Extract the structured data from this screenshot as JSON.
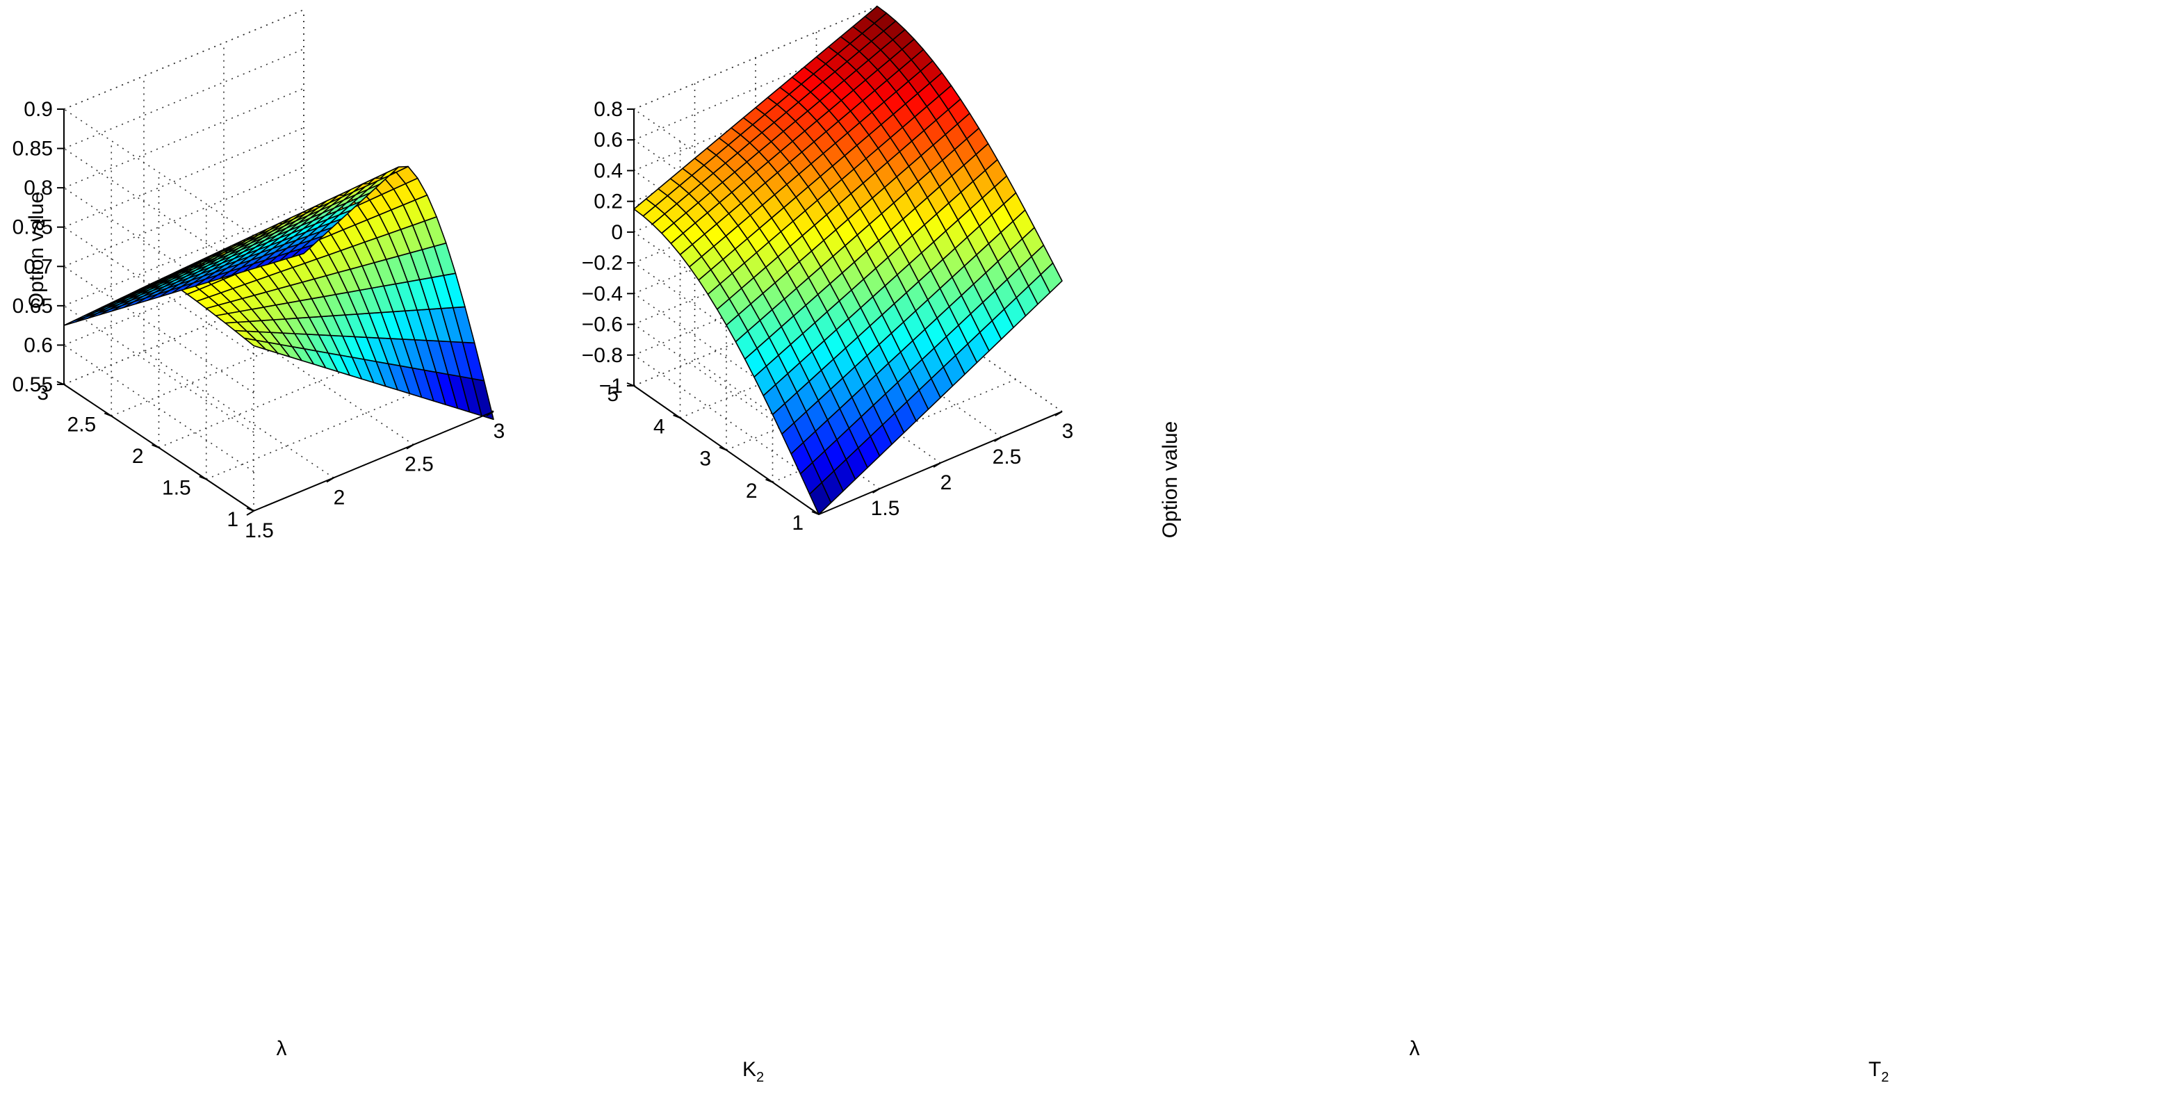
{
  "chart_data": [
    {
      "type": "surface3d",
      "title": "",
      "xlabel": "K",
      "xlabel_sub": "2",
      "ylabel": "λ",
      "zlabel": "Option value",
      "x_ticks": [
        "1.5",
        "2",
        "2.5",
        "3"
      ],
      "y_ticks": [
        "1",
        "1.5",
        "2",
        "2.5",
        "3"
      ],
      "z_ticks": [
        "0.55",
        "0.6",
        "0.65",
        "0.7",
        "0.75",
        "0.8",
        "0.85",
        "0.9"
      ],
      "xlim": [
        1.5,
        3
      ],
      "ylim": [
        1,
        3
      ],
      "zlim": [
        0.55,
        0.9
      ],
      "colormap": "jet",
      "grid": true,
      "surface": {
        "x_range": [
          1.5,
          3
        ],
        "y_range": [
          1,
          3
        ],
        "nx": 21,
        "ny": 21,
        "peak_x": 1.5,
        "peak_y": 1.95,
        "corner_values": {
          "x1.5_y1": 0.76,
          "x1.5_y3": 0.625,
          "x3_y1": 0.54,
          "x3_y3": 0.59,
          "peak_at_x1.5": 0.77,
          "peak_at_x3": 0.79
        }
      }
    },
    {
      "type": "surface3d",
      "title": "",
      "xlabel": "T",
      "xlabel_sub": "2",
      "ylabel": "λ",
      "zlabel": "Option value",
      "x_ticks": [
        "1.5",
        "2",
        "2.5",
        "3"
      ],
      "y_ticks": [
        "1",
        "2",
        "3",
        "4",
        "5"
      ],
      "z_ticks": [
        "−1",
        "−0.8",
        "−0.6",
        "−0.4",
        "−0.2",
        "0",
        "0.2",
        "0.4",
        "0.6",
        "0.8"
      ],
      "xlim": [
        1,
        3
      ],
      "ylim": [
        1,
        5
      ],
      "zlim": [
        -1,
        0.8
      ],
      "colormap": "jet",
      "grid": true,
      "surface": {
        "x_range": [
          1,
          3
        ],
        "y_range": [
          1,
          5
        ],
        "nx": 21,
        "ny": 21,
        "corner_values": {
          "x1_y1": -1.0,
          "x1_y5": 0.15,
          "x3_y1": -0.15,
          "x3_y5": 0.8
        }
      }
    }
  ]
}
